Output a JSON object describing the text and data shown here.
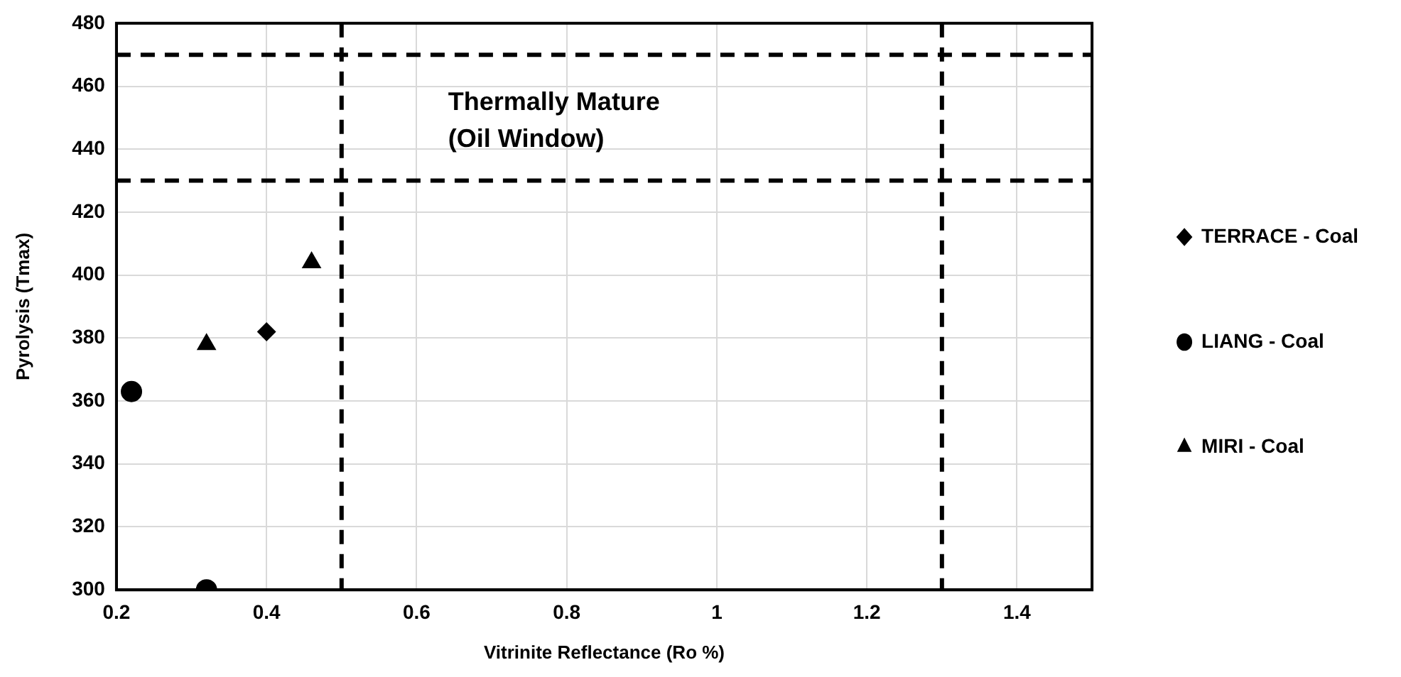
{
  "chart_data": {
    "type": "scatter",
    "xlabel": "Vitrinite Reflectance (Ro %)",
    "ylabel": "Pyrolysis (Tmax)",
    "xlim": [
      0.2,
      1.5
    ],
    "xticks": [
      0.2,
      0.4,
      0.6,
      0.8,
      1,
      1.2,
      1.4
    ],
    "ylim": [
      300,
      480
    ],
    "yticks": [
      300,
      320,
      340,
      360,
      380,
      400,
      420,
      440,
      460,
      480
    ],
    "grid": true,
    "legend": "right",
    "series": [
      {
        "name": "TERRACE - Coal",
        "color": "#000000",
        "marker": "diamond",
        "x": [
          0.4
        ],
        "values": [
          382
        ]
      },
      {
        "name": "LIANG - Coal",
        "color": "#000000",
        "marker": "circle",
        "x": [
          0.22,
          0.32
        ],
        "values": [
          363,
          300
        ]
      },
      {
        "name": "MIRI - Coal",
        "color": "#000000",
        "marker": "triangle",
        "x": [
          0.32,
          0.46
        ],
        "values": [
          378,
          404
        ]
      }
    ],
    "ref_lines": [
      {
        "axis": "x",
        "value": 0.5,
        "color": "#000000",
        "line_style": "dashed"
      },
      {
        "axis": "x",
        "value": 1.3,
        "color": "#000000",
        "line_style": "dashed"
      },
      {
        "axis": "y",
        "value": 430,
        "color": "#000000",
        "line_style": "dashed"
      },
      {
        "axis": "y",
        "value": 470,
        "color": "#000000",
        "line_style": "dashed"
      }
    ],
    "annotations": [
      "Thermally Mature\n(Oil Window)"
    ]
  }
}
